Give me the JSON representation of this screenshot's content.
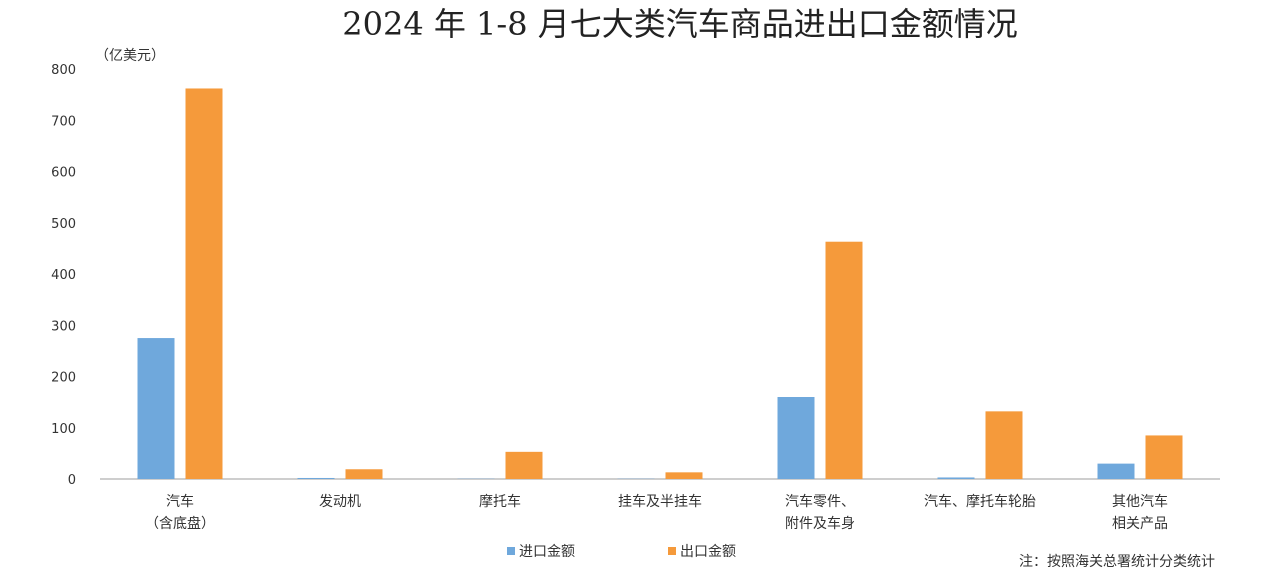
{
  "chart_data": {
    "type": "bar",
    "title": "2024 年 1-8 月七大类汽车商品进出口金额情况",
    "ylabel": "（亿美元）",
    "ylim": [
      0,
      800
    ],
    "yticks": [
      "0",
      "100",
      "200",
      "300",
      "400",
      "500",
      "600",
      "700",
      "800"
    ],
    "categories": [
      [
        "汽车",
        "（含底盘）"
      ],
      [
        "发动机"
      ],
      [
        "摩托车"
      ],
      [
        "挂车及半挂车"
      ],
      [
        "汽车零件、",
        "附件及车身"
      ],
      [
        "汽车、摩托车轮胎"
      ],
      [
        "其他汽车",
        "相关产品"
      ]
    ],
    "series": [
      {
        "name": "进口金额",
        "color": "#6fa8dc",
        "values": [
          275,
          2,
          0.5,
          0.5,
          160,
          3,
          30
        ]
      },
      {
        "name": "出口金额",
        "color": "#f59a3b",
        "values": [
          762,
          19,
          53,
          13,
          463,
          132,
          85
        ]
      }
    ],
    "legend_position": "bottom",
    "grid": false
  },
  "source": "注：按照海关总署统计分类统计"
}
